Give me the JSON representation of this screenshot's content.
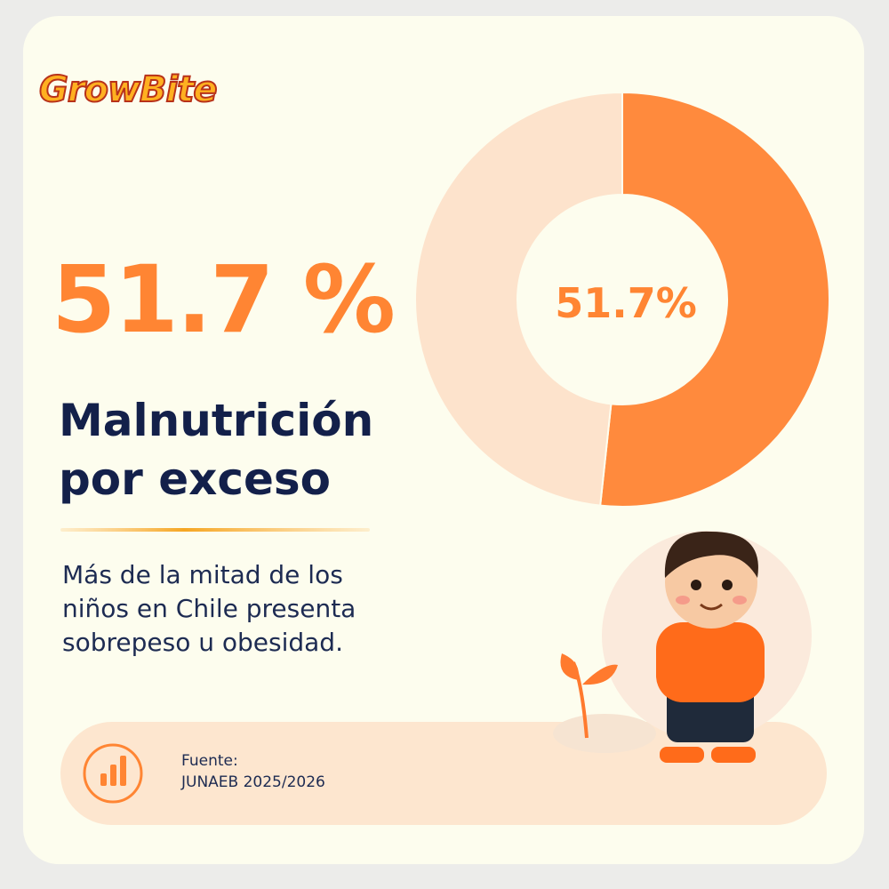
{
  "logo": "GrowBite",
  "headline_value": "51.7 %",
  "heading": "Malnutrición por exceso",
  "description": "Más de la mitad de los niños en Chile presenta sobrepeso u obesidad.",
  "source": {
    "label": "Fuente:",
    "text": "JUNAEB 2025/2026"
  },
  "chart_data": {
    "type": "donut",
    "values": [
      51.7,
      48.3
    ],
    "value_labels": [
      "51.7%",
      null
    ],
    "colors": [
      "#ff8a3d",
      "#fde3cc"
    ]
  }
}
